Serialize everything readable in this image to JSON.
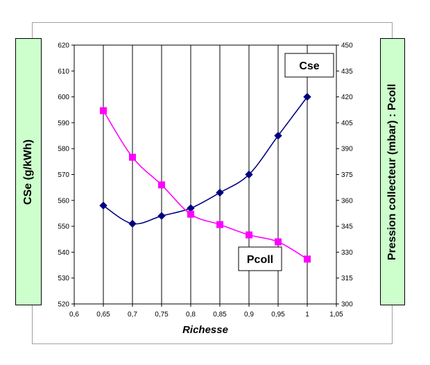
{
  "chart_data": {
    "type": "line",
    "xlabel": "Richesse",
    "ylabel": "CSe (g/kWh)",
    "y2label": "Pression collecteur (mbar) : Pcoll",
    "x": [
      0.65,
      0.7,
      0.75,
      0.8,
      0.85,
      0.9,
      0.95,
      1
    ],
    "xlim": [
      0.6,
      1.05
    ],
    "ylim": [
      520,
      620
    ],
    "y2lim": [
      300,
      450
    ],
    "xticks": [
      "0,6",
      "0,65",
      "0,7",
      "0,75",
      "0,8",
      "0,85",
      "0,9",
      "0,95",
      "1",
      "1,05"
    ],
    "yticks": [
      "520",
      "530",
      "540",
      "550",
      "560",
      "570",
      "580",
      "590",
      "600",
      "610",
      "620"
    ],
    "y2ticks": [
      "300",
      "315",
      "330",
      "345",
      "360",
      "375",
      "390",
      "405",
      "420",
      "435",
      "450"
    ],
    "grid": "vertical",
    "series": [
      {
        "name": "Cse",
        "axis": "left",
        "color": "#000080",
        "marker": "diamond",
        "values": [
          558,
          551,
          554,
          557,
          563,
          570,
          585,
          600
        ]
      },
      {
        "name": "Pcoll",
        "axis": "right",
        "color": "#ff00ff",
        "marker": "square",
        "values": [
          412,
          385,
          369,
          352,
          346,
          340,
          336,
          326
        ]
      }
    ]
  }
}
